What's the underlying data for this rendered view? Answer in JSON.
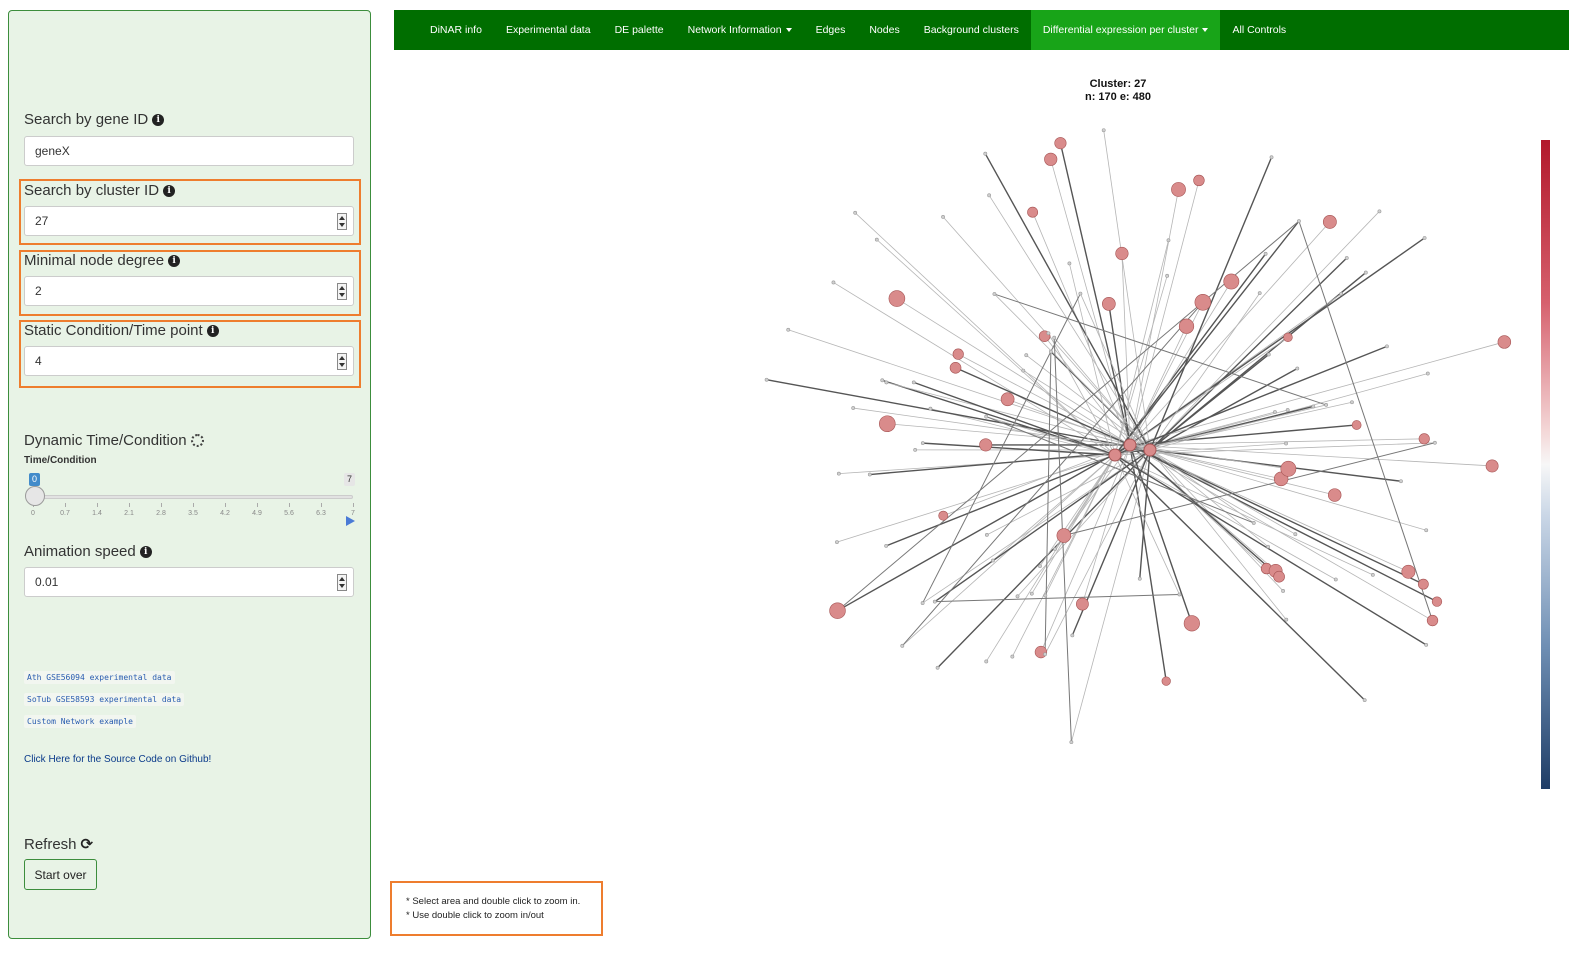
{
  "sidebar": {
    "gene_search": {
      "label": "Search by gene ID",
      "value": "geneX"
    },
    "cluster_search": {
      "label": "Search by cluster ID",
      "value": "27"
    },
    "min_degree": {
      "label": "Minimal node degree",
      "value": "2"
    },
    "static_condition": {
      "label": "Static Condition/Time point",
      "value": "4"
    },
    "dynamic": {
      "label": "Dynamic Time/Condition",
      "slider_label": "Time/Condition",
      "min_badge": "0",
      "max_badge": "7",
      "current_value": 0,
      "ticks": [
        "0",
        "0.7",
        "1.4",
        "2.1",
        "2.8",
        "3.5",
        "4.2",
        "4.9",
        "5.6",
        "6.3",
        "7"
      ]
    },
    "animation_speed": {
      "label": "Animation speed",
      "value": "0.01"
    },
    "links": [
      "Ath GSE56094 experimental data",
      "SoTub GSE58593 experimental data",
      "Custom Network example"
    ],
    "github_link": "Click Here for the Source Code on Github!",
    "refresh_label": "Refresh",
    "start_over": "Start over"
  },
  "navbar": {
    "items": [
      {
        "label": "DiNAR info",
        "dropdown": false
      },
      {
        "label": "Experimental data",
        "dropdown": false
      },
      {
        "label": "DE palette",
        "dropdown": false
      },
      {
        "label": "Network Information",
        "dropdown": true
      },
      {
        "label": "Edges",
        "dropdown": false
      },
      {
        "label": "Nodes",
        "dropdown": false
      },
      {
        "label": "Background clusters",
        "dropdown": false
      },
      {
        "label": "Differential expression per cluster",
        "dropdown": true,
        "active": true
      },
      {
        "label": "All Controls",
        "dropdown": false
      }
    ]
  },
  "plot": {
    "title_line1": "Cluster: 27",
    "title_line2": "n: 170 e: 480"
  },
  "notes": {
    "line1": "* Select area and double click to zoom in.",
    "line2": "* Use double click to zoom in/out"
  },
  "colors": {
    "nav_bg": "#006e00",
    "nav_active": "#18a418",
    "sidebar_bg": "#e8f3e6",
    "highlight": "#ee7d2e",
    "node_fill": "#d98b8b"
  }
}
